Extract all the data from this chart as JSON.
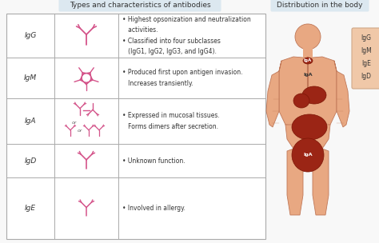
{
  "title_left": "Types and characteristics of antibodies",
  "title_right": "Distribution in the body",
  "background_color": "#f8f8f8",
  "title_left_bg": "#dce8f0",
  "title_right_bg": "#dce8f0",
  "row_labels": [
    "IgG",
    "IgM",
    "IgA",
    "IgD",
    "IgE"
  ],
  "row_descriptions": [
    "• Highest opsonization and neutralization\n   activities.\n• Classified into four subclasses\n   (IgG1, IgG2, IgG3, and IgG4).",
    "• Produced first upon antigen invasion.\n   Increases transiently.",
    "• Expressed in mucosal tissues.\n   Forms dimers after secretion.",
    "• Unknown function.",
    "• Involved in allergy."
  ],
  "antibody_color": "#d4548a",
  "body_skin_color": "#e8a882",
  "body_line_color": "#c07858",
  "organ_color": "#9B2515",
  "organ_edge_color": "#7B1505",
  "text_color": "#333333",
  "iga_text_color": "#333333",
  "legend_labels": [
    "IgG",
    "IgM",
    "IgE",
    "IgD"
  ],
  "legend_bg": "#f0c8a8",
  "legend_edge": "#d0a888",
  "table_line_color": "#aaaaaa",
  "row_bg_odd": "#ffffff",
  "row_bg_even": "#ffffff"
}
